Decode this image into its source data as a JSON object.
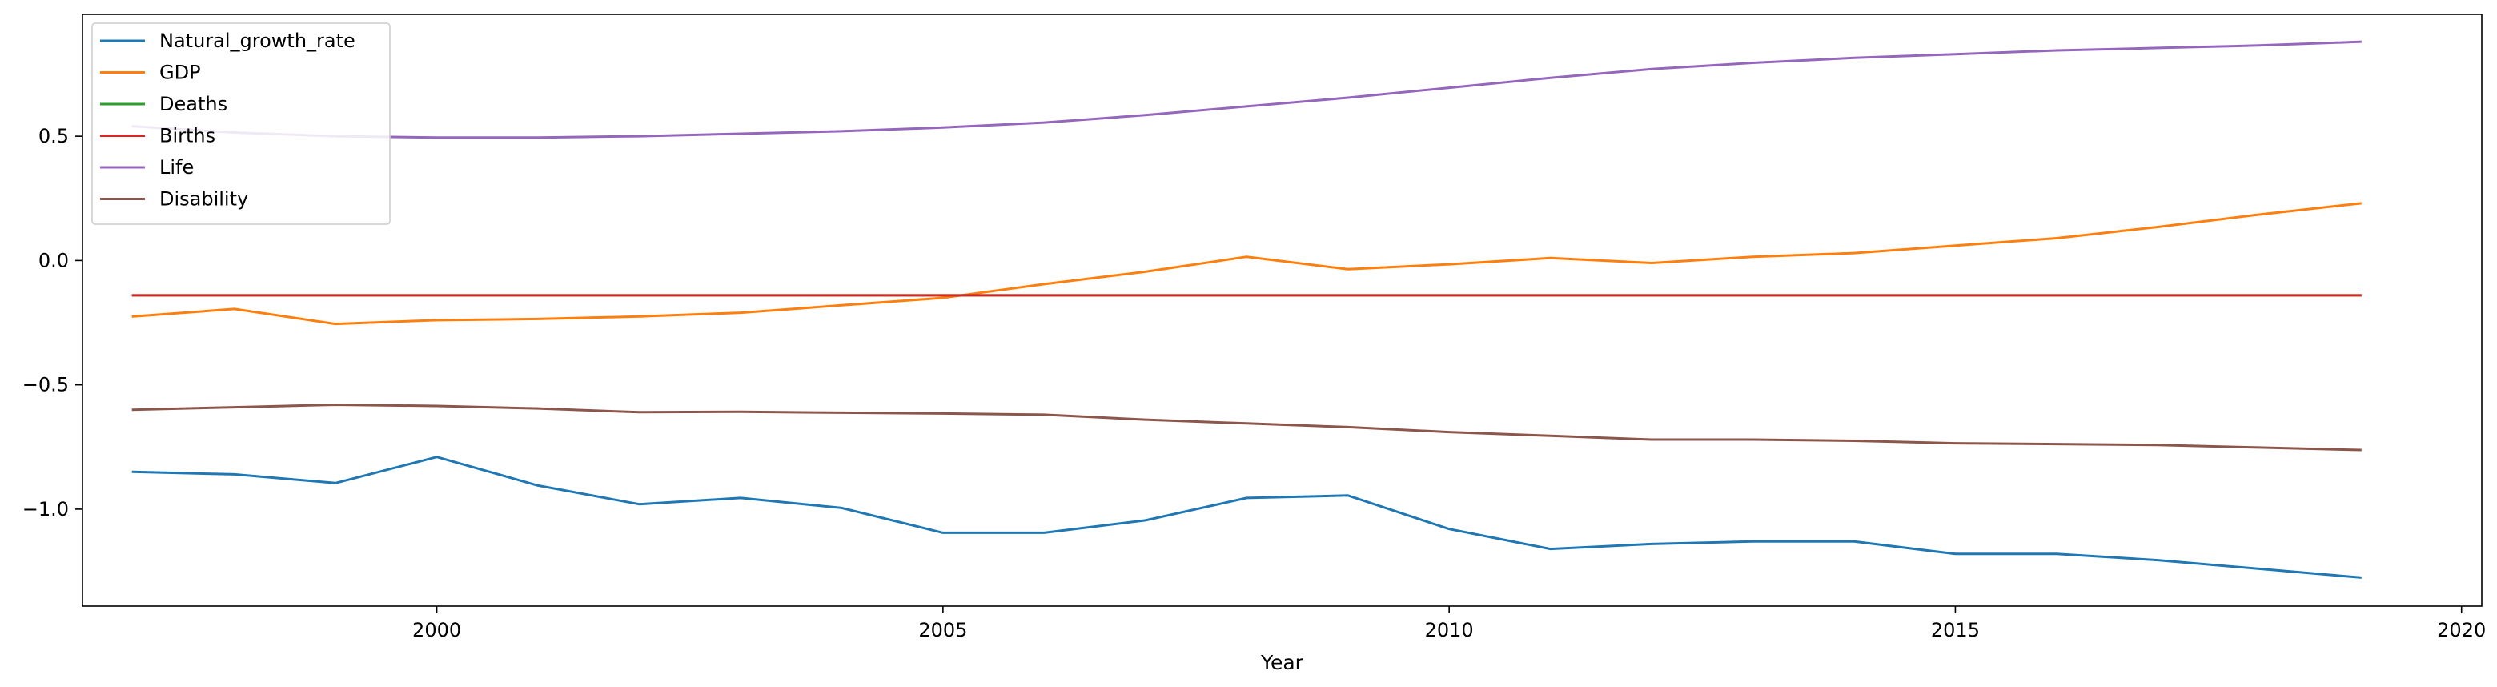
{
  "chart_data": {
    "type": "line",
    "xlabel": "Year",
    "ylabel": "",
    "xlim": [
      1996.5,
      2020.2
    ],
    "ylim": [
      -1.39,
      0.99
    ],
    "xticks": [
      2000,
      2005,
      2010,
      2015,
      2020
    ],
    "yticks": [
      -1.0,
      -0.5,
      0.0,
      0.5
    ],
    "ytick_labels": [
      "−1.0",
      "−0.5",
      "0.0",
      "0.5"
    ],
    "grid": false,
    "legend_position": "upper-left",
    "x": [
      1997,
      1998,
      1999,
      2000,
      2001,
      2002,
      2003,
      2004,
      2005,
      2006,
      2007,
      2008,
      2009,
      2010,
      2011,
      2012,
      2013,
      2014,
      2015,
      2016,
      2017,
      2018,
      2019
    ],
    "series": [
      {
        "name": "Natural_growth_rate",
        "color": "#1f77b4",
        "values": [
          -0.85,
          -0.86,
          -0.895,
          -0.79,
          -0.905,
          -0.98,
          -0.955,
          -0.995,
          -1.095,
          -1.095,
          -1.045,
          -0.955,
          -0.945,
          -1.08,
          -1.16,
          -1.14,
          -1.13,
          -1.13,
          -1.18,
          -1.18,
          -1.205,
          -1.24,
          -1.275
        ]
      },
      {
        "name": "GDP",
        "color": "#ff7f0e",
        "values": [
          -0.225,
          -0.195,
          -0.255,
          -0.24,
          -0.235,
          -0.225,
          -0.21,
          -0.18,
          -0.15,
          -0.095,
          -0.045,
          0.015,
          -0.035,
          -0.015,
          0.01,
          -0.01,
          0.015,
          0.03,
          0.06,
          0.09,
          0.135,
          0.185,
          0.23
        ]
      },
      {
        "name": "Deaths",
        "color": "#2ca02c",
        "values": [
          -0.14,
          -0.14,
          -0.14,
          -0.14,
          -0.14,
          -0.14,
          -0.14,
          -0.14,
          -0.14,
          -0.14,
          -0.14,
          -0.14,
          -0.14,
          -0.14,
          -0.14,
          -0.14,
          -0.14,
          -0.14,
          -0.14,
          -0.14,
          -0.14,
          -0.14,
          -0.14
        ]
      },
      {
        "name": "Births",
        "color": "#d62728",
        "values": [
          -0.14,
          -0.14,
          -0.14,
          -0.14,
          -0.14,
          -0.14,
          -0.14,
          -0.14,
          -0.14,
          -0.14,
          -0.14,
          -0.14,
          -0.14,
          -0.14,
          -0.14,
          -0.14,
          -0.14,
          -0.14,
          -0.14,
          -0.14,
          -0.14,
          -0.14,
          -0.14
        ]
      },
      {
        "name": "Life",
        "color": "#9467bd",
        "values": [
          0.54,
          0.515,
          0.5,
          0.495,
          0.495,
          0.5,
          0.51,
          0.52,
          0.535,
          0.555,
          0.585,
          0.62,
          0.655,
          0.695,
          0.735,
          0.77,
          0.795,
          0.815,
          0.83,
          0.845,
          0.855,
          0.865,
          0.88
        ]
      },
      {
        "name": "Disability",
        "color": "#8c564b",
        "values": [
          -0.6,
          -0.59,
          -0.58,
          -0.585,
          -0.595,
          -0.61,
          -0.608,
          -0.612,
          -0.615,
          -0.62,
          -0.64,
          -0.655,
          -0.67,
          -0.69,
          -0.705,
          -0.72,
          -0.72,
          -0.725,
          -0.735,
          -0.738,
          -0.742,
          -0.752,
          -0.762
        ]
      }
    ]
  }
}
